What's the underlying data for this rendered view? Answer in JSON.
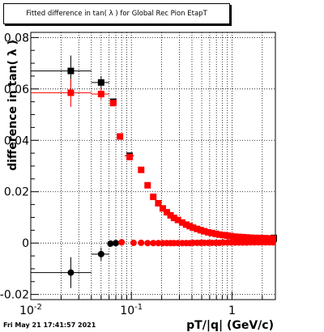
{
  "title": "Fitted difference in tan( λ ) for Global Rec Pion EtapT",
  "timestamp": "Fri May 21 17:41:57 2021",
  "chart_data": {
    "type": "scatter",
    "title": "Fitted difference in tan( λ ) for Global Rec Pion EtapT",
    "xlabel": "pT/|q| (GeV/c)",
    "ylabel": "difference in tan( λ )",
    "xscale": "log",
    "xlim": [
      0.01,
      2.7
    ],
    "ylim": [
      -0.022,
      0.082
    ],
    "grid": true,
    "x_ticks": [
      {
        "value": 0.01,
        "label": "10",
        "sup": "-2"
      },
      {
        "value": 0.1,
        "label": "10",
        "sup": "-1"
      },
      {
        "value": 1,
        "label": "1",
        "sup": ""
      }
    ],
    "y_ticks": [
      {
        "value": -0.02,
        "label": "-0.02"
      },
      {
        "value": 0,
        "label": "0"
      },
      {
        "value": 0.02,
        "label": "0.02"
      },
      {
        "value": 0.04,
        "label": "0.04"
      },
      {
        "value": 0.06,
        "label": "0.06"
      },
      {
        "value": 0.08,
        "label": "0.08"
      }
    ],
    "series": [
      {
        "color": "#000000",
        "marker": "square",
        "points": [
          {
            "x": 0.025,
            "y": 0.067,
            "xerr": [
              0.015,
              0.015
            ],
            "yerr": 0.006
          },
          {
            "x": 0.05,
            "y": 0.0625,
            "xerr": [
              0.01,
              0.01
            ],
            "yerr": 0.0025
          },
          {
            "x": 0.066,
            "y": 0.055,
            "xerr": [
              0.004,
              0.004
            ],
            "yerr": 0.0012
          },
          {
            "x": 0.096,
            "y": 0.034,
            "xerr": [
              0.01,
              0.01
            ],
            "yerr": 0.0005
          },
          {
            "x": 2.6,
            "y": 0.002,
            "xerr": [
              0,
              0
            ],
            "yerr": 0.0008
          }
        ]
      },
      {
        "color": "#000000",
        "marker": "circle",
        "points": [
          {
            "x": 0.025,
            "y": -0.0115,
            "xerr": [
              0.015,
              0.015
            ],
            "yerr": 0.006
          },
          {
            "x": 0.05,
            "y": -0.0043,
            "xerr": [
              0.01,
              0.01
            ],
            "yerr": 0.0025
          },
          {
            "x": 0.062,
            "y": -0.0002,
            "xerr": [
              0.004,
              0.004
            ],
            "yerr": 0.0012
          },
          {
            "x": 0.07,
            "y": 0.0,
            "xerr": [
              0.003,
              0.003
            ],
            "yerr": 0.0008
          },
          {
            "x": 2.6,
            "y": 0.001,
            "xerr": [
              0,
              0
            ],
            "yerr": 0.0008
          }
        ]
      },
      {
        "color": "#ff0000",
        "marker": "square",
        "points": [
          {
            "x": 0.025,
            "y": 0.0585,
            "xerr": [
              0.015,
              0.015
            ],
            "yerr": 0.0055
          },
          {
            "x": 0.05,
            "y": 0.058,
            "xerr": [
              0.01,
              0.01
            ],
            "yerr": 0.0022
          },
          {
            "x": 0.066,
            "y": 0.0545,
            "xerr": [
              0.004,
              0.004
            ],
            "yerr": 0.001
          },
          {
            "x": 0.077,
            "y": 0.0415
          },
          {
            "x": 0.096,
            "y": 0.0335
          },
          {
            "x": 0.125,
            "y": 0.0285
          },
          {
            "x": 0.145,
            "y": 0.0225
          },
          {
            "x": 0.165,
            "y": 0.018
          },
          {
            "x": 0.185,
            "y": 0.0155
          },
          {
            "x": 0.205,
            "y": 0.0135
          },
          {
            "x": 0.225,
            "y": 0.012
          },
          {
            "x": 0.245,
            "y": 0.0108
          },
          {
            "x": 0.265,
            "y": 0.0098
          },
          {
            "x": 0.29,
            "y": 0.009
          },
          {
            "x": 0.32,
            "y": 0.008
          },
          {
            "x": 0.35,
            "y": 0.0072
          },
          {
            "x": 0.38,
            "y": 0.0066
          },
          {
            "x": 0.41,
            "y": 0.006
          },
          {
            "x": 0.45,
            "y": 0.0055
          },
          {
            "x": 0.49,
            "y": 0.005
          },
          {
            "x": 0.53,
            "y": 0.0046
          },
          {
            "x": 0.58,
            "y": 0.0042
          },
          {
            "x": 0.63,
            "y": 0.0039
          },
          {
            "x": 0.69,
            "y": 0.0036
          },
          {
            "x": 0.75,
            "y": 0.0033
          },
          {
            "x": 0.82,
            "y": 0.0031
          },
          {
            "x": 0.9,
            "y": 0.0029
          },
          {
            "x": 0.98,
            "y": 0.0027
          },
          {
            "x": 1.07,
            "y": 0.0025
          },
          {
            "x": 1.17,
            "y": 0.0024
          },
          {
            "x": 1.28,
            "y": 0.0023
          },
          {
            "x": 1.4,
            "y": 0.0022
          },
          {
            "x": 1.53,
            "y": 0.0021
          },
          {
            "x": 1.67,
            "y": 0.002
          },
          {
            "x": 1.82,
            "y": 0.002
          },
          {
            "x": 1.98,
            "y": 0.0019
          },
          {
            "x": 2.15,
            "y": 0.0019
          },
          {
            "x": 2.35,
            "y": 0.0018
          },
          {
            "x": 2.55,
            "y": 0.0018
          }
        ]
      },
      {
        "color": "#ff0000",
        "marker": "circle",
        "points": [
          {
            "x": 0.08,
            "y": 0.0003
          },
          {
            "x": 0.105,
            "y": 0.0001
          },
          {
            "x": 0.125,
            "y": 0.0001
          },
          {
            "x": 0.145,
            "y": 0.0
          },
          {
            "x": 0.165,
            "y": 0.0
          },
          {
            "x": 0.185,
            "y": 0.0
          },
          {
            "x": 0.205,
            "y": 0.0
          },
          {
            "x": 0.225,
            "y": 0.0
          },
          {
            "x": 0.245,
            "y": 0.0
          },
          {
            "x": 0.265,
            "y": 0.0
          },
          {
            "x": 0.29,
            "y": 0.0
          },
          {
            "x": 0.32,
            "y": 0.0
          },
          {
            "x": 0.35,
            "y": 0.0
          },
          {
            "x": 0.38,
            "y": 0.0
          },
          {
            "x": 0.41,
            "y": 0.0001
          },
          {
            "x": 0.45,
            "y": 0.0001
          },
          {
            "x": 0.49,
            "y": 0.0001
          },
          {
            "x": 0.53,
            "y": 0.0001
          },
          {
            "x": 0.58,
            "y": 0.0001
          },
          {
            "x": 0.63,
            "y": 0.0001
          },
          {
            "x": 0.69,
            "y": 0.0001
          },
          {
            "x": 0.75,
            "y": 0.0001
          },
          {
            "x": 0.82,
            "y": 0.0002
          },
          {
            "x": 0.9,
            "y": 0.0002
          },
          {
            "x": 0.98,
            "y": 0.0002
          },
          {
            "x": 1.07,
            "y": 0.0002
          },
          {
            "x": 1.17,
            "y": 0.0002
          },
          {
            "x": 1.28,
            "y": 0.0002
          },
          {
            "x": 1.4,
            "y": 0.0002
          },
          {
            "x": 1.53,
            "y": 0.0003
          },
          {
            "x": 1.67,
            "y": 0.0003
          },
          {
            "x": 1.82,
            "y": 0.0003
          },
          {
            "x": 1.98,
            "y": 0.0003
          },
          {
            "x": 2.15,
            "y": 0.0003
          },
          {
            "x": 2.35,
            "y": 0.0003
          },
          {
            "x": 2.55,
            "y": 0.0003
          }
        ]
      }
    ]
  }
}
